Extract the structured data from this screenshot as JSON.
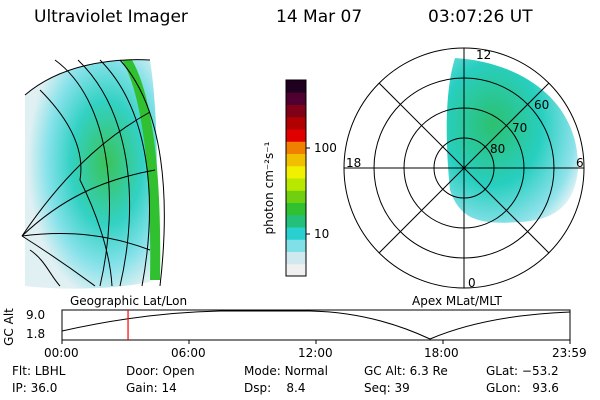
{
  "header": {
    "instrument": "Ultraviolet Imager",
    "date": "14 Mar 07",
    "time": "03:07:26 UT"
  },
  "colorbar": {
    "unit_label": "photon cm⁻²s⁻¹",
    "ticks": [
      {
        "label": "100",
        "value": 100
      },
      {
        "label": "10",
        "value": 10
      }
    ],
    "colors": [
      "#f0f0f0",
      "#cfe9ee",
      "#7fe0e8",
      "#28d0d0",
      "#24c07a",
      "#30c030",
      "#70d010",
      "#b8e800",
      "#f0f000",
      "#f0c000",
      "#f08000",
      "#e00000",
      "#b00000",
      "#800018",
      "#500030",
      "#200020"
    ]
  },
  "geo_panel": {
    "title": "Geographic Lat/Lon"
  },
  "polar_panel": {
    "title": "Apex MLat/MLT",
    "mlt_labels": {
      "top": "12",
      "left": "18",
      "right": "6",
      "bottom": "0"
    },
    "lat_labels": [
      "60",
      "70",
      "80"
    ]
  },
  "timeline": {
    "axis_label": "GC Alt",
    "y_ticks": [
      "9.0",
      "1.8"
    ],
    "x_ticks": [
      "00:00",
      "06:00",
      "12:00",
      "18:00",
      "23:59"
    ],
    "current_time_fraction": 0.13,
    "marker_color": "#ff0000"
  },
  "status": {
    "filter": {
      "label": "Flt:",
      "value": "LBHL"
    },
    "ip": {
      "label": "IP:",
      "value": "36.0"
    },
    "door": {
      "label": "Door:",
      "value": "Open"
    },
    "gain": {
      "label": "Gain:",
      "value": "14"
    },
    "mode": {
      "label": "Mode:",
      "value": "Normal"
    },
    "dsp": {
      "label": "Dsp:",
      "value": "8.4"
    },
    "gc_alt": {
      "label": "GC Alt:",
      "value": "6.3 Re"
    },
    "seq": {
      "label": "Seq:",
      "value": "39"
    },
    "glat": {
      "label": "GLat:",
      "value": "−53.2"
    },
    "glon": {
      "label": "GLon:",
      "value": "93.6"
    }
  }
}
